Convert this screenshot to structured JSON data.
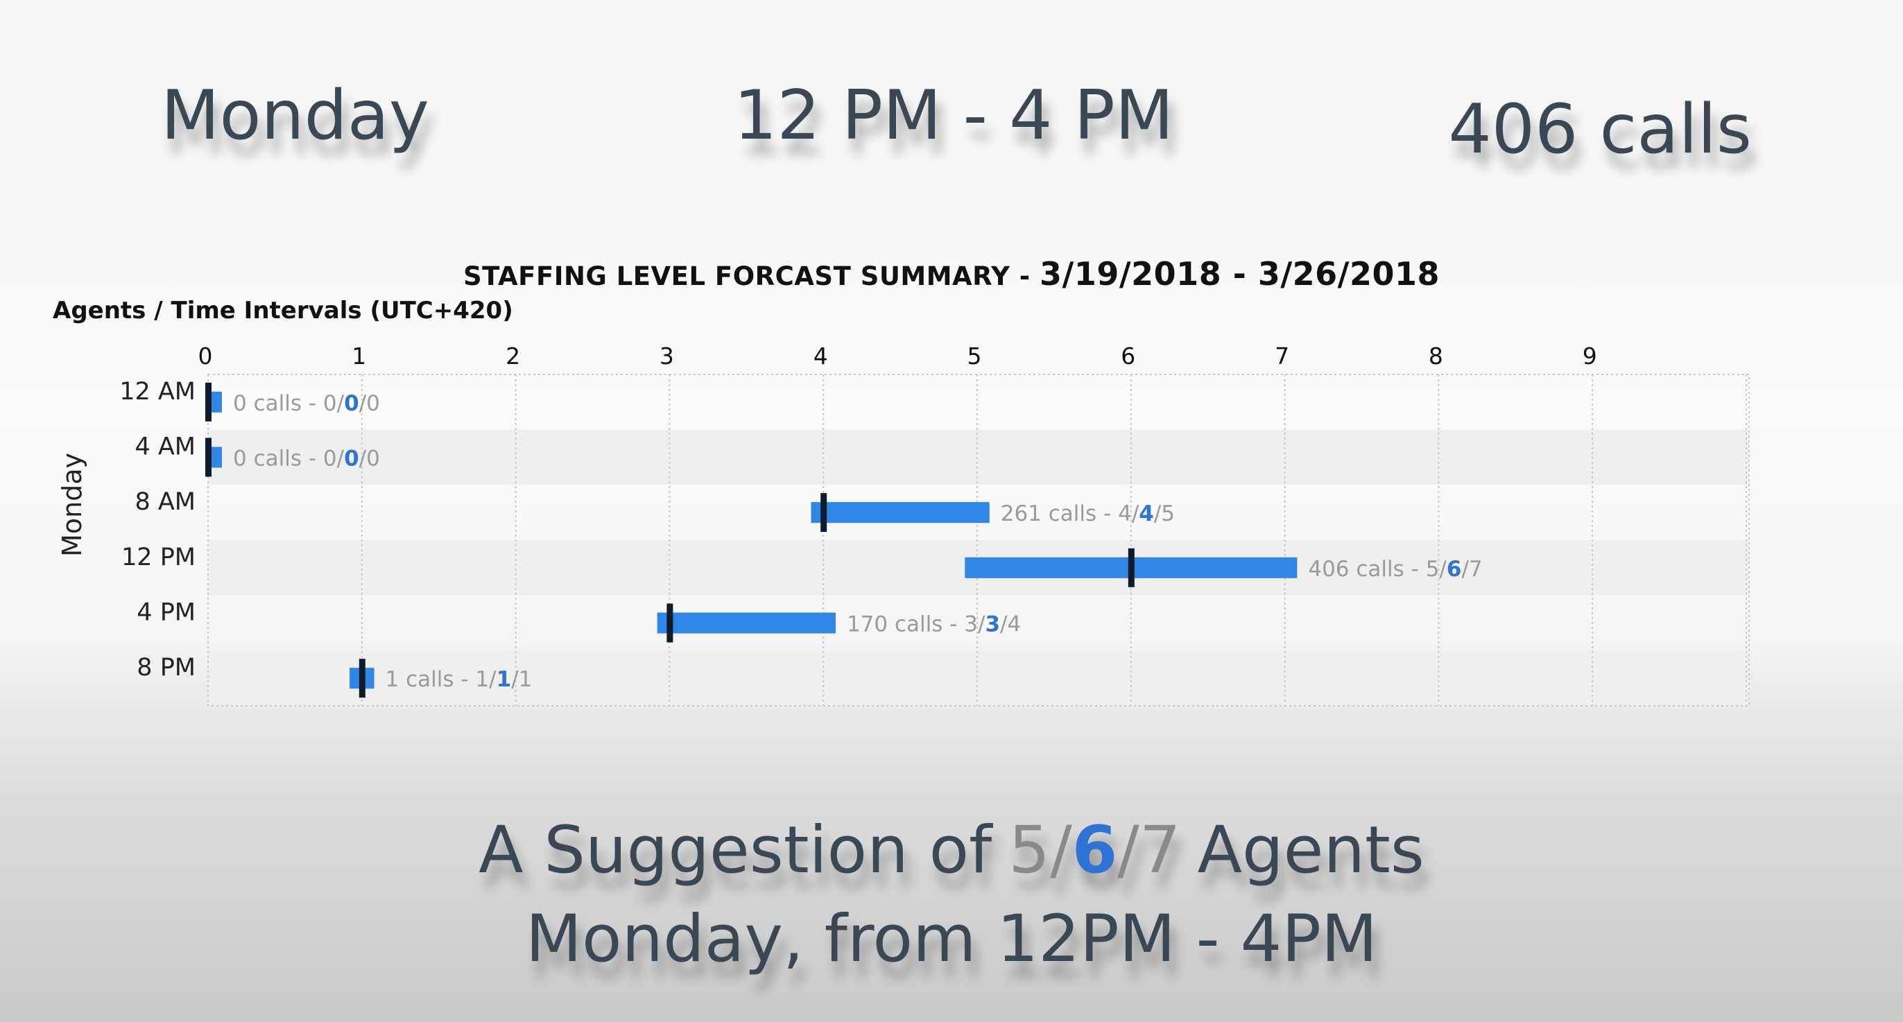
{
  "header": {
    "day": "Monday",
    "time_range": "12 PM  -  4 PM",
    "calls": "406 calls"
  },
  "summary": {
    "line1_prefix": "A Suggestion of",
    "min": "5",
    "sep1": "/",
    "recommended": "6",
    "sep2": "/",
    "max": "7",
    "line1_suffix": "Agents",
    "line2": "Monday, from 12PM - 4PM"
  },
  "colors": {
    "bar": "#2f86e6",
    "marker": "#0f1a2a",
    "label": "#9a9a9a",
    "recommended": "#2e73d4",
    "row_alt": "#efefef"
  },
  "chart_data": {
    "type": "bar",
    "orientation": "horizontal",
    "title": "STAFFING LEVEL FORCAST SUMMARY - ",
    "title_dates": "3/19/2018 - 3/26/2018",
    "xlabel": "Agents / Time Intervals (UTC+420)",
    "group_label": "Monday",
    "xlim": [
      0,
      10
    ],
    "x_ticks": [
      "0",
      "1",
      "2",
      "3",
      "4",
      "5",
      "6",
      "7",
      "8",
      "9"
    ],
    "grid": true,
    "categories": [
      "12 AM",
      "4 AM",
      "8 AM",
      "12 PM",
      "4 PM",
      "8 PM"
    ],
    "rows": [
      {
        "time": "12 AM",
        "calls": 0,
        "min": 0,
        "recommended": 0,
        "max": 0,
        "label_calls": "0 calls - ",
        "label_min": "0",
        "label_rec": "0",
        "label_max": "0"
      },
      {
        "time": "4 AM",
        "calls": 0,
        "min": 0,
        "recommended": 0,
        "max": 0,
        "label_calls": "0 calls - ",
        "label_min": "0",
        "label_rec": "0",
        "label_max": "0"
      },
      {
        "time": "8 AM",
        "calls": 261,
        "min": 4,
        "recommended": 4,
        "max": 5,
        "label_calls": "261 calls - ",
        "label_min": "4",
        "label_rec": "4",
        "label_max": "5"
      },
      {
        "time": "12 PM",
        "calls": 406,
        "min": 5,
        "recommended": 6,
        "max": 7,
        "label_calls": "406 calls - ",
        "label_min": "5",
        "label_rec": "6",
        "label_max": "7"
      },
      {
        "time": "4 PM",
        "calls": 170,
        "min": 3,
        "recommended": 3,
        "max": 4,
        "label_calls": "170 calls - ",
        "label_min": "3",
        "label_rec": "3",
        "label_max": "4"
      },
      {
        "time": "8 PM",
        "calls": 1,
        "min": 1,
        "recommended": 1,
        "max": 1,
        "label_calls": "1 calls - ",
        "label_min": "1",
        "label_rec": "1",
        "label_max": "1"
      }
    ]
  }
}
